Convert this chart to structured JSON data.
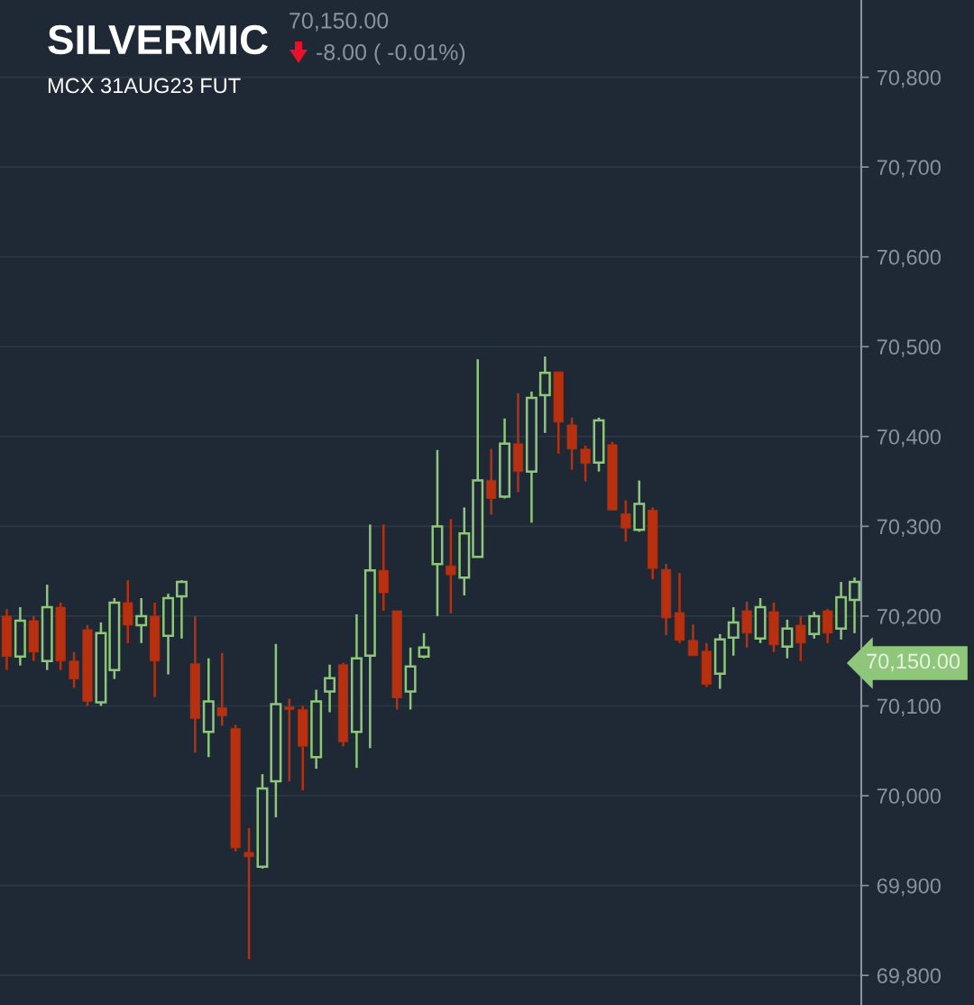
{
  "chart_data": {
    "type": "candlestick",
    "title": "SILVERMIC",
    "subtitle": "MCX 31AUG23 FUT",
    "annotations": [
      "70,150.00",
      "-8.00 ( -0.01%)",
      "70,150.00"
    ],
    "categories": [
      null,
      null,
      null,
      null,
      null,
      null,
      null,
      null,
      null,
      null,
      null,
      null,
      null,
      null,
      null,
      null,
      null,
      null,
      null,
      null,
      null,
      null,
      null,
      null,
      null,
      null,
      null,
      null,
      null,
      null,
      null,
      null,
      null,
      null,
      null,
      null,
      null,
      null,
      null,
      null,
      null,
      null,
      null,
      null,
      null,
      null,
      null,
      null,
      null,
      null,
      null,
      null,
      null,
      null,
      null,
      null,
      null,
      null,
      null,
      null,
      null,
      null,
      null,
      null
    ],
    "ohlc": [
      [
        70200,
        70208,
        70140,
        70155
      ],
      [
        70155,
        70210,
        70145,
        70195
      ],
      [
        70195,
        70200,
        70150,
        70160
      ],
      [
        70150,
        70235,
        70140,
        70210
      ],
      [
        70210,
        70215,
        70140,
        70150
      ],
      [
        70150,
        70160,
        70120,
        70130
      ],
      [
        70185,
        70190,
        70100,
        70105
      ],
      [
        70104,
        70193,
        70100,
        70181
      ],
      [
        70140,
        70220,
        70130,
        70215
      ],
      [
        70215,
        70240,
        70170,
        70190
      ],
      [
        70190,
        70220,
        70170,
        70200
      ],
      [
        70200,
        70215,
        70110,
        70150
      ],
      [
        70178,
        70225,
        70135,
        70220
      ],
      [
        70222,
        70240,
        70175,
        70238
      ],
      [
        70147,
        70200,
        70048,
        70086
      ],
      [
        70071,
        70153,
        70043,
        70105
      ],
      [
        70098,
        70159,
        70078,
        70089
      ],
      [
        70075,
        70079,
        69938,
        69942
      ],
      [
        69937,
        69964,
        69818,
        69932
      ],
      [
        69921,
        70024,
        69919,
        70008
      ],
      [
        70016,
        70169,
        69976,
        70102
      ],
      [
        70099,
        70108,
        70016,
        70096
      ],
      [
        70096,
        70100,
        70006,
        70055
      ],
      [
        70043,
        70118,
        70030,
        70105
      ],
      [
        70116,
        70146,
        70093,
        70131
      ],
      [
        70146,
        70148,
        70055,
        70060
      ],
      [
        70071,
        70202,
        70031,
        70153
      ],
      [
        70156,
        70302,
        70053,
        70251
      ],
      [
        70251,
        70302,
        70206,
        70226
      ],
      [
        70206,
        70206,
        70096,
        70109
      ],
      [
        70116,
        70165,
        70096,
        70144
      ],
      [
        70155,
        70181,
        70153,
        70165
      ],
      [
        70258,
        70385,
        70200,
        70300
      ],
      [
        70256,
        70308,
        70203,
        70246
      ],
      [
        70243,
        70321,
        70223,
        70292
      ],
      [
        70266,
        70486,
        70266,
        70351
      ],
      [
        70351,
        70386,
        70313,
        70331
      ],
      [
        70333,
        70420,
        70331,
        70392
      ],
      [
        70392,
        70448,
        70338,
        70361
      ],
      [
        70361,
        70450,
        70304,
        70443
      ],
      [
        70446,
        70489,
        70404,
        70471
      ],
      [
        70472,
        70472,
        70381,
        70416
      ],
      [
        70413,
        70421,
        70363,
        70386
      ],
      [
        70386,
        70390,
        70350,
        70370
      ],
      [
        70371,
        70421,
        70361,
        70418
      ],
      [
        70391,
        70394,
        70318,
        70318
      ],
      [
        70314,
        70329,
        70283,
        70298
      ],
      [
        70296,
        70351,
        70294,
        70325
      ],
      [
        70318,
        70321,
        70241,
        70253
      ],
      [
        70252,
        70258,
        70179,
        70198
      ],
      [
        70204,
        70248,
        70170,
        70173
      ],
      [
        70173,
        70191,
        70156,
        70156
      ],
      [
        70161,
        70170,
        70121,
        70124
      ],
      [
        70136,
        70180,
        70119,
        70174
      ],
      [
        70176,
        70210,
        70156,
        70193
      ],
      [
        70206,
        70216,
        70165,
        70181
      ],
      [
        70175,
        70220,
        70170,
        70210
      ],
      [
        70205,
        70215,
        70160,
        70168
      ],
      [
        70166,
        70196,
        70153,
        70186
      ],
      [
        70190,
        70200,
        70150,
        70170
      ],
      [
        70180,
        70205,
        70175,
        70200
      ],
      [
        70206,
        70208,
        70170,
        70181
      ],
      [
        70186,
        70238,
        70174,
        70221
      ],
      [
        70218,
        70243,
        70181,
        70238
      ]
    ],
    "colors": [
      "#b7300f",
      "#8ec77a",
      "#b7300f",
      "#8ec77a",
      "#b7300f",
      "#b7300f",
      "#b7300f",
      "#8ec77a",
      "#8ec77a",
      "#b7300f",
      "#8ec77a",
      "#b7300f",
      "#8ec77a",
      "#8ec77a",
      "#b7300f",
      "#8ec77a",
      "#b7300f",
      "#b7300f",
      "#b7300f",
      "#8ec77a",
      "#8ec77a",
      "#b7300f",
      "#b7300f",
      "#8ec77a",
      "#8ec77a",
      "#b7300f",
      "#8ec77a",
      "#8ec77a",
      "#b7300f",
      "#b7300f",
      "#8ec77a",
      "#8ec77a",
      "#8ec77a",
      "#b7300f",
      "#8ec77a",
      "#8ec77a",
      "#b7300f",
      "#8ec77a",
      "#b7300f",
      "#8ec77a",
      "#8ec77a",
      "#b7300f",
      "#b7300f",
      "#b7300f",
      "#8ec77a",
      "#b7300f",
      "#b7300f",
      "#8ec77a",
      "#b7300f",
      "#b7300f",
      "#b7300f",
      "#b7300f",
      "#b7300f",
      "#8ec77a",
      "#8ec77a",
      "#b7300f",
      "#8ec77a",
      "#b7300f",
      "#8ec77a",
      "#b7300f",
      "#8ec77a",
      "#b7300f",
      "#8ec77a",
      "#8ec77a"
    ],
    "ylim": [
      69767,
      70886
    ],
    "yticks": [
      {
        "value": 69800,
        "label": "69,800"
      },
      {
        "value": 69900,
        "label": "69,900"
      },
      {
        "value": 70000,
        "label": "70,000"
      },
      {
        "value": 70100,
        "label": "70,100"
      },
      {
        "value": 70200,
        "label": "70,200"
      },
      {
        "value": 70300,
        "label": "70,300"
      },
      {
        "value": 70400,
        "label": "70,400"
      },
      {
        "value": 70500,
        "label": "70,500"
      },
      {
        "value": 70600,
        "label": "70,600"
      },
      {
        "value": 70700,
        "label": "70,700"
      },
      {
        "value": 70800,
        "label": "70,800"
      }
    ],
    "grid": "y",
    "tick_labels": "y"
  }
}
